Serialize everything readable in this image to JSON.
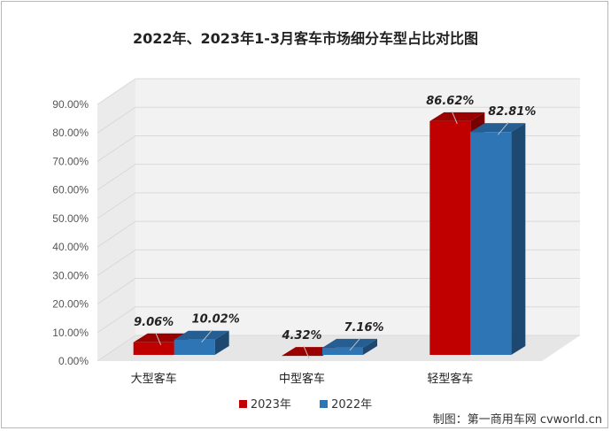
{
  "chart_data": {
    "type": "bar",
    "title": "2022年、2023年1-3月客车市场细分车型占比对比图",
    "categories": [
      "大型客车",
      "中型客车",
      "轻型客车"
    ],
    "series": [
      {
        "name": "2023年",
        "values": [
          9.06,
          4.32,
          86.62
        ],
        "labels": [
          "9.06%",
          "4.32%",
          "86.62%"
        ],
        "color": "#c00000"
      },
      {
        "name": "2022年",
        "values": [
          10.02,
          7.16,
          82.81
        ],
        "labels": [
          "10.02%",
          "7.16%",
          "82.81%"
        ],
        "color": "#2e75b6"
      }
    ],
    "yticks": [
      "0.00%",
      "10.00%",
      "20.00%",
      "30.00%",
      "40.00%",
      "50.00%",
      "60.00%",
      "70.00%",
      "80.00%",
      "90.00%"
    ],
    "ylim": [
      0,
      90
    ],
    "legend_position": "bottom",
    "grid": true,
    "style": "3d-column"
  },
  "credit": "制图：第一商用车网 cvworld.cn"
}
